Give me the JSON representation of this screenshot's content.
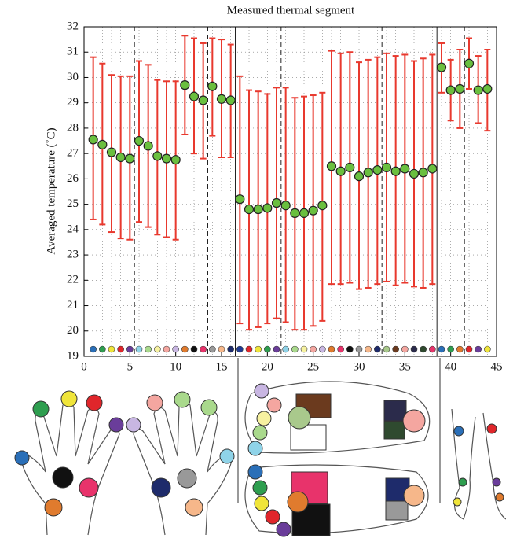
{
  "chart_data": {
    "type": "errorbar",
    "title": "Measured thermal segment",
    "ylabel": "Averaged temperature (˚C)",
    "x": [
      1,
      2,
      3,
      4,
      5,
      6,
      7,
      8,
      9,
      10,
      11,
      12,
      13,
      14,
      15,
      16,
      17,
      18,
      19,
      20,
      21,
      22,
      23,
      24,
      25,
      26,
      27,
      28,
      29,
      30,
      31,
      32,
      33,
      34,
      35,
      36,
      37,
      38,
      39,
      40,
      41,
      42,
      43,
      44
    ],
    "series": [
      {
        "color": "#6abf3f",
        "error_color": "#e8392e",
        "values": [
          27.55,
          27.35,
          27.05,
          26.85,
          26.8,
          27.5,
          27.3,
          26.9,
          26.8,
          26.75,
          29.7,
          29.25,
          29.1,
          29.65,
          29.15,
          29.1,
          25.2,
          24.8,
          24.8,
          24.85,
          25.05,
          24.95,
          24.65,
          24.65,
          24.75,
          24.95,
          26.5,
          26.3,
          26.45,
          26.1,
          26.25,
          26.35,
          26.45,
          26.3,
          26.4,
          26.2,
          26.25,
          26.4,
          30.4,
          29.5,
          29.55,
          30.55,
          29.5,
          29.55
        ],
        "lower": [
          24.4,
          24.2,
          23.9,
          23.65,
          23.6,
          24.3,
          24.1,
          23.8,
          23.7,
          23.6,
          27.75,
          27.0,
          26.8,
          27.7,
          26.85,
          26.85,
          20.3,
          20.05,
          20.15,
          20.3,
          20.5,
          20.35,
          20.05,
          20.05,
          20.2,
          20.4,
          21.85,
          21.85,
          21.9,
          21.65,
          21.7,
          21.85,
          21.95,
          21.8,
          21.9,
          21.75,
          21.7,
          21.85,
          29.4,
          28.3,
          28.0,
          29.55,
          28.2,
          27.9
        ],
        "upper": [
          30.8,
          30.55,
          30.1,
          30.05,
          30.05,
          30.65,
          30.5,
          29.9,
          29.85,
          29.85,
          31.65,
          31.55,
          31.35,
          31.55,
          31.5,
          31.3,
          30.05,
          29.5,
          29.45,
          29.35,
          29.6,
          29.6,
          29.2,
          29.25,
          29.3,
          29.4,
          31.05,
          30.95,
          31.0,
          30.6,
          30.7,
          30.8,
          30.95,
          30.85,
          30.9,
          30.65,
          30.75,
          30.9,
          31.35,
          30.7,
          31.1,
          31.55,
          30.85,
          31.1
        ]
      }
    ],
    "marker_colors": [
      "#2a6fb8",
      "#2e9e4f",
      "#f0e53a",
      "#e0262b",
      "#6a3d9a",
      "#8fd3e8",
      "#a9d98c",
      "#f7f2a0",
      "#f4a6a0",
      "#c8b6e2",
      "#e07b2e",
      "#111111",
      "#e8336b",
      "#999999",
      "#f6b78a",
      "#1e2b6b",
      "#1f3a93",
      "#e0262b",
      "#f0e53a",
      "#2e9e4f",
      "#6a3d9a",
      "#8fd3e8",
      "#a9d98c",
      "#f7f2a0",
      "#f4a6a0",
      "#c8b6e2",
      "#e07b2e",
      "#e8336b",
      "#111111",
      "#999999",
      "#f6b78a",
      "#1e2b6b",
      "#a9c98c",
      "#6b3a1e",
      "#f4a6a0",
      "#2b2b4b",
      "#2f4a2f",
      "#e8336b",
      "#2a6fb8",
      "#2e9e4f",
      "#e07b2e",
      "#e0262b",
      "#6a3d9a",
      "#f0e53a"
    ],
    "xlim": [
      0,
      45
    ],
    "ylim": [
      19,
      32
    ],
    "xticks": [
      0,
      5,
      10,
      15,
      20,
      25,
      30,
      35,
      40,
      45
    ],
    "yticks": [
      19,
      20,
      21,
      22,
      23,
      24,
      25,
      26,
      27,
      28,
      29,
      30,
      31,
      32
    ],
    "grid": true,
    "dashed_lines": [
      5.5,
      13.5,
      21.5,
      32.5,
      41.5
    ],
    "solid_lines": [
      16.5,
      38.5
    ]
  }
}
